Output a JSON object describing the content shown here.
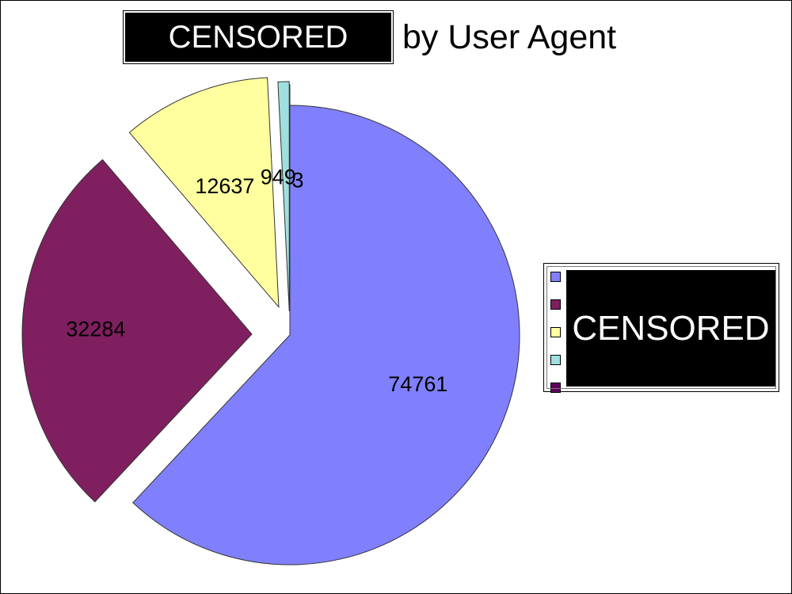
{
  "title": {
    "redacted": "CENSORED",
    "suffix": "by User Agent"
  },
  "legend": {
    "redacted": "CENSORED"
  },
  "chart_data": {
    "type": "pie",
    "title": "CENSORED by User Agent",
    "values": [
      74761,
      32284,
      12637,
      949,
      3
    ],
    "labels": [
      "74761",
      "32284",
      "12637",
      "949",
      "3"
    ],
    "colors": [
      "#8080ff",
      "#7f1f5f",
      "#ffff9f",
      "#9fdfdf",
      "#600060"
    ],
    "legend_position": "right"
  }
}
